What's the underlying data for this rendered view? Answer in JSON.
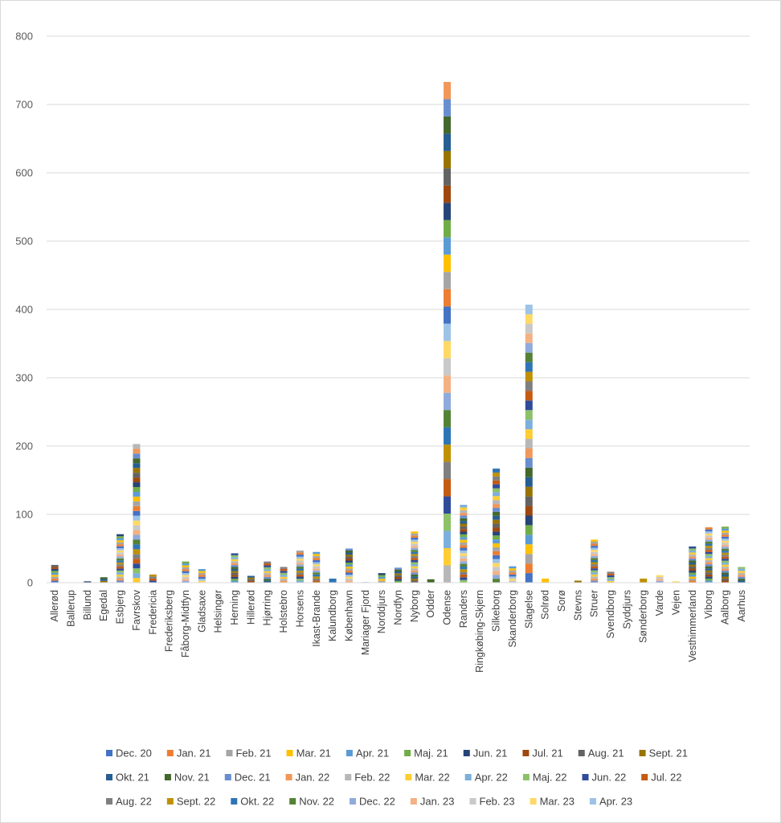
{
  "chart_data": {
    "type": "bar",
    "stacked": true,
    "title": "",
    "xlabel": "",
    "ylabel": "",
    "ylim": [
      0,
      800
    ],
    "yticks": [
      0,
      100,
      200,
      300,
      400,
      500,
      600,
      700,
      800
    ],
    "grid": true,
    "legend_position": "bottom",
    "categories": [
      "Allerød",
      "Ballerup",
      "Billund",
      "Egedal",
      "Esbjerg",
      "Favrskov",
      "Fredericia",
      "Frederiksberg",
      "Fåborg-Midtfyn",
      "Gladsaxe",
      "Helsingør",
      "Herning",
      "Hillerød",
      "Hjørring",
      "Holstebro",
      "Horsens",
      "Ikast-Brande",
      "Kalundborg",
      "København",
      "Mariager Fjord",
      "Norddjurs",
      "Nordfyn",
      "Nyborg",
      "Odder",
      "Odense",
      "Randers",
      "Ringkøbing-Skjern",
      "Silkeborg",
      "Skanderborg",
      "Slagelse",
      "Solrød",
      "Sorø",
      "Stevns",
      "Struer",
      "Svendborg",
      "Syddjurs",
      "Sønderborg",
      "Varde",
      "Vejen",
      "Vesthimmerland",
      "Viborg",
      "Aalborg",
      "Aarhus"
    ],
    "totals": [
      26,
      0,
      2,
      8,
      71,
      203,
      12,
      0,
      31,
      20,
      0,
      43,
      10,
      31,
      23,
      47,
      45,
      6,
      50,
      1,
      14,
      22,
      75,
      5,
      733,
      114,
      0,
      167,
      24,
      407,
      6,
      0,
      3,
      63,
      16,
      0,
      6,
      11,
      2,
      53,
      81,
      82,
      23
    ],
    "series": [
      {
        "name": "Dec. 20",
        "color": "#4472C4"
      },
      {
        "name": "Jan. 21",
        "color": "#ED7D31"
      },
      {
        "name": "Feb. 21",
        "color": "#A5A5A5"
      },
      {
        "name": "Mar. 21",
        "color": "#FFC000"
      },
      {
        "name": "Apr. 21",
        "color": "#5B9BD5"
      },
      {
        "name": "Maj. 21",
        "color": "#70AD47"
      },
      {
        "name": "Jun. 21",
        "color": "#264478"
      },
      {
        "name": "Jul. 21",
        "color": "#9E480E"
      },
      {
        "name": "Aug. 21",
        "color": "#636363"
      },
      {
        "name": "Sept. 21",
        "color": "#997300"
      },
      {
        "name": "Okt. 21",
        "color": "#255E91"
      },
      {
        "name": "Nov. 21",
        "color": "#43682B"
      },
      {
        "name": "Dec. 21",
        "color": "#698ED0"
      },
      {
        "name": "Jan. 22",
        "color": "#F1975A"
      },
      {
        "name": "Feb. 22",
        "color": "#B7B7B7"
      },
      {
        "name": "Mar. 22",
        "color": "#FFCD33"
      },
      {
        "name": "Apr. 22",
        "color": "#7CAFDD"
      },
      {
        "name": "Maj. 22",
        "color": "#8CC168"
      },
      {
        "name": "Jun. 22",
        "color": "#2F4B9A"
      },
      {
        "name": "Jul. 22",
        "color": "#C55A11"
      },
      {
        "name": "Aug. 22",
        "color": "#7F7F7F"
      },
      {
        "name": "Sept. 22",
        "color": "#BF9000"
      },
      {
        "name": "Okt. 22",
        "color": "#2E75B6"
      },
      {
        "name": "Nov. 22",
        "color": "#548235"
      },
      {
        "name": "Dec. 22",
        "color": "#8FAADC"
      },
      {
        "name": "Jan. 23",
        "color": "#F4B183"
      },
      {
        "name": "Feb. 23",
        "color": "#C9C9C9"
      },
      {
        "name": "Mar. 23",
        "color": "#FFD966"
      },
      {
        "name": "Apr. 23",
        "color": "#9DC3E6"
      }
    ]
  }
}
